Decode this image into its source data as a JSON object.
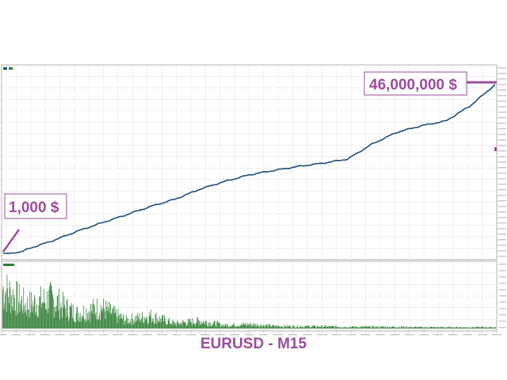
{
  "chart_data": [
    {
      "type": "line",
      "legend": [
        "Balance",
        "Equity"
      ],
      "colors": {
        "balance": "#1f4e79",
        "equity": "#2e7d32",
        "grid": "#e6e6e6",
        "frame": "#b0b0b0",
        "callout": "#9b4d9b"
      },
      "y_scale": "linear",
      "x": [
        0,
        5,
        10,
        15,
        20,
        25,
        30,
        35,
        40,
        45,
        50,
        55,
        60,
        65,
        70,
        75,
        80,
        85,
        90,
        95,
        100
      ],
      "series": [
        {
          "name": "Balance",
          "values": [
            0.001,
            1.2,
            3.4,
            6.0,
            8.3,
            10.5,
            12.8,
            14.8,
            17.5,
            19.6,
            21.4,
            22.6,
            23.7,
            24.6,
            25.7,
            29.8,
            33.0,
            34.8,
            36.1,
            40.3,
            46.0
          ]
        }
      ],
      "annotations": {
        "start": "1,000 $",
        "end": "46,000,000 $"
      }
    },
    {
      "type": "bar",
      "series": [
        {
          "name": "Volume",
          "profile": [
            0.95,
            0.55,
            0.7,
            0.35,
            0.5,
            0.2,
            0.3,
            0.12,
            0.18,
            0.08,
            0.1,
            0.06,
            0.05,
            0.05,
            0.04,
            0.04,
            0.04,
            0.03,
            0.03,
            0.03,
            0.03
          ]
        }
      ]
    }
  ],
  "caption": "EURUSD - M15"
}
